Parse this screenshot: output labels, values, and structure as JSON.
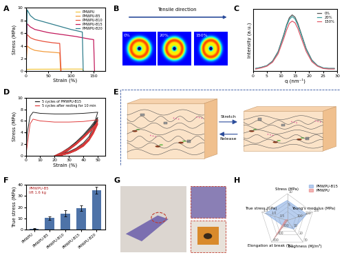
{
  "panel_labels": [
    "A",
    "B",
    "C",
    "D",
    "E",
    "F",
    "G",
    "H"
  ],
  "saxs_panel": {
    "arrow_label": "Tensile direction",
    "frames": [
      "0%",
      "20%",
      "150%"
    ]
  },
  "schematic": {
    "forward_label": "Stretch",
    "backward_label": "Release"
  },
  "chart_data": [
    {
      "type": "line",
      "xlabel": "Strain (%)",
      "ylabel": "Stress (MPa)",
      "xlim": [
        0,
        175
      ],
      "xticks": [
        0,
        50,
        100,
        150
      ],
      "ylim": [
        0,
        10
      ],
      "yticks": [
        0,
        2,
        4,
        6,
        8,
        10
      ],
      "legend": "upper right",
      "series": [
        {
          "name": "PMWPU",
          "color": "#f2c744",
          "x": [
            0,
            2,
            10,
            50,
            100,
            125,
            128
          ],
          "values": [
            0,
            0.3,
            0.32,
            0.33,
            0.35,
            0.35,
            0
          ]
        },
        {
          "name": "PMWPU-B5",
          "color": "#f39c3d",
          "x": [
            0,
            3,
            10,
            20,
            40,
            60,
            75,
            77
          ],
          "values": [
            0,
            4.0,
            3.6,
            3.3,
            3.1,
            3.0,
            2.9,
            0
          ]
        },
        {
          "name": "PMWPU-B10",
          "color": "#e8503a",
          "x": [
            0,
            3,
            10,
            20,
            40,
            60,
            75,
            78
          ],
          "values": [
            0,
            5.8,
            5.3,
            5.0,
            4.7,
            4.5,
            4.4,
            0
          ]
        },
        {
          "name": "PMWPU-B15",
          "color": "#c2185b",
          "x": [
            0,
            3,
            10,
            20,
            50,
            80,
            110,
            140,
            150,
            152
          ],
          "values": [
            0,
            7.5,
            7.0,
            6.6,
            6.1,
            5.8,
            5.5,
            5.1,
            5.0,
            0
          ]
        },
        {
          "name": "PMWPU-B20",
          "color": "#2e7d8c",
          "x": [
            0,
            3,
            10,
            20,
            50,
            80,
            100,
            125,
            127
          ],
          "values": [
            0,
            9.7,
            8.8,
            8.2,
            7.6,
            7.0,
            6.6,
            6.2,
            0
          ]
        }
      ]
    },
    {
      "type": "line",
      "xlabel": "q (nm⁻¹)",
      "ylabel": "Intensity (a.u.)",
      "xlim": [
        0,
        30
      ],
      "xticks": [
        0,
        5,
        10,
        15,
        20,
        25,
        30
      ],
      "ylim": [
        0,
        1.1
      ],
      "yticks": [],
      "tick_labels": "x",
      "legend": "upper right",
      "x": [
        1,
        3,
        5,
        7,
        9,
        11,
        12,
        13,
        14,
        15,
        16,
        17,
        19,
        21,
        23,
        25,
        27,
        29
      ],
      "series": [
        {
          "name": "0%",
          "color": "#555555",
          "values": [
            0.05,
            0.07,
            0.1,
            0.18,
            0.35,
            0.65,
            0.82,
            0.95,
            1.0,
            0.96,
            0.85,
            0.7,
            0.4,
            0.2,
            0.1,
            0.06,
            0.05,
            0.05
          ]
        },
        {
          "name": "20%",
          "color": "#3a9e9e",
          "values": [
            0.05,
            0.07,
            0.1,
            0.17,
            0.34,
            0.63,
            0.8,
            0.92,
            0.97,
            0.93,
            0.82,
            0.68,
            0.39,
            0.19,
            0.1,
            0.06,
            0.05,
            0.05
          ]
        },
        {
          "name": "150%",
          "color": "#e05a6a",
          "values": [
            0.04,
            0.06,
            0.09,
            0.16,
            0.31,
            0.58,
            0.73,
            0.85,
            0.89,
            0.86,
            0.76,
            0.62,
            0.35,
            0.17,
            0.09,
            0.05,
            0.04,
            0.04
          ]
        }
      ]
    },
    {
      "type": "line",
      "xlabel": "Strain (%)",
      "ylabel": "Stress (MPa)",
      "xlim": [
        0,
        55
      ],
      "xticks": [
        0,
        10,
        20,
        30,
        40,
        50
      ],
      "ylim": [
        0,
        10
      ],
      "yticks": [
        0,
        2,
        4,
        6,
        8,
        10
      ],
      "legend": "upper center",
      "series": [
        {
          "name": "5 cycles of PMWPU-B15",
          "color": "#222222",
          "cycles": [
            {
              "x": [
                0,
                1,
                3,
                5,
                10,
                20,
                30,
                40,
                50,
                47,
                44,
                40,
                35,
                30,
                25,
                20
              ],
              "values": [
                0,
                4,
                6.8,
                7.5,
                7.3,
                7.2,
                7.2,
                7.3,
                7.5,
                5,
                3.3,
                2.2,
                1.3,
                0.7,
                0.3,
                0
              ]
            },
            {
              "x": [
                20,
                25,
                30,
                35,
                40,
                45,
                50,
                47,
                44,
                40,
                35,
                30,
                25,
                21
              ],
              "values": [
                0,
                0.6,
                1.4,
                2.4,
                3.6,
                5.0,
                6.6,
                4.5,
                3.0,
                2.0,
                1.2,
                0.6,
                0.2,
                0
              ]
            },
            {
              "x": [
                21,
                25,
                30,
                35,
                40,
                45,
                50,
                47,
                44,
                40,
                35,
                30,
                25,
                22
              ],
              "values": [
                0,
                0.5,
                1.3,
                2.3,
                3.4,
                4.8,
                6.3,
                4.3,
                2.9,
                1.9,
                1.1,
                0.5,
                0.2,
                0
              ]
            },
            {
              "x": [
                22,
                25,
                30,
                35,
                40,
                45,
                50,
                47,
                44,
                40,
                35,
                30,
                25,
                23
              ],
              "values": [
                0,
                0.3,
                1.1,
                2.1,
                3.2,
                4.6,
                6.1,
                4.2,
                2.8,
                1.8,
                1.0,
                0.5,
                0.1,
                0
              ]
            },
            {
              "x": [
                23,
                25,
                30,
                35,
                40,
                45,
                50,
                47,
                44,
                40,
                35,
                30,
                25,
                23
              ],
              "values": [
                0,
                0.2,
                1.0,
                2.0,
                3.1,
                4.5,
                6.0,
                4.1,
                2.7,
                1.7,
                0.9,
                0.4,
                0.1,
                0
              ]
            }
          ]
        },
        {
          "name": "5 cycles after resting for 10 min",
          "color": "#e03a3a",
          "cycles": [
            {
              "x": [
                0,
                3,
                5,
                10,
                20,
                30,
                40,
                50,
                47,
                44,
                40,
                35,
                30,
                25,
                20
              ],
              "values": [
                0,
                5.5,
                6.3,
                6.0,
                5.8,
                5.8,
                5.9,
                6.2,
                4.4,
                3.0,
                2.0,
                1.2,
                0.6,
                0.2,
                0
              ]
            },
            {
              "x": [
                20,
                25,
                30,
                35,
                40,
                45,
                50,
                47,
                44,
                40,
                35,
                30,
                25,
                21
              ],
              "values": [
                0,
                0.6,
                1.3,
                2.2,
                3.3,
                4.5,
                5.8,
                4.2,
                2.9,
                1.9,
                1.1,
                0.5,
                0.2,
                0
              ]
            },
            {
              "x": [
                21,
                25,
                30,
                35,
                40,
                45,
                50,
                47,
                44,
                40,
                35,
                30,
                25,
                22
              ],
              "values": [
                0,
                0.5,
                1.2,
                2.1,
                3.2,
                4.4,
                5.6,
                4.0,
                2.8,
                1.8,
                1.0,
                0.5,
                0.1,
                0
              ]
            },
            {
              "x": [
                22,
                25,
                30,
                35,
                40,
                45,
                50,
                47,
                44,
                40,
                35,
                30,
                25,
                23
              ],
              "values": [
                0,
                0.4,
                1.1,
                2.0,
                3.1,
                4.3,
                5.5,
                3.9,
                2.7,
                1.7,
                0.9,
                0.4,
                0.1,
                0
              ]
            },
            {
              "x": [
                23,
                25,
                30,
                35,
                40,
                45,
                50,
                47,
                44,
                40,
                35,
                30,
                25,
                24
              ],
              "values": [
                0,
                0.2,
                1.0,
                1.9,
                3.0,
                4.2,
                5.4,
                3.8,
                2.6,
                1.6,
                0.9,
                0.4,
                0.1,
                0
              ]
            }
          ]
        }
      ]
    },
    {
      "type": "bar",
      "ylabel": "True stress (MPa)",
      "categories": [
        "PMWPU",
        "PMWPU-B5",
        "PMWPU-B10",
        "PMWPU-B15",
        "PMWPU-B20"
      ],
      "values": [
        1.0,
        10.5,
        14.5,
        19.0,
        35.0
      ],
      "errors": [
        0.3,
        1.5,
        3.0,
        2.5,
        3.0
      ],
      "color": "#4e73a8",
      "ylim": [
        0,
        40
      ],
      "yticks": [
        0,
        10,
        20,
        30,
        40
      ],
      "annotations": [
        "PMWPU-B5",
        "lift 1.6 kg"
      ]
    },
    {
      "type": "radar",
      "legend": "upper right",
      "axes": [
        {
          "label": "Stress (MPa)",
          "lim": [
            0,
            10
          ],
          "ticks": [
            5,
            10
          ]
        },
        {
          "label": "Young's modulus (MPa)",
          "lim": [
            0,
            300
          ],
          "ticks": [
            100,
            200,
            300
          ]
        },
        {
          "label": "Toughness (MJ/m³)",
          "lim": [
            0,
            30
          ],
          "ticks": [
            10,
            20,
            30
          ]
        },
        {
          "label": "Elongation at break (%)",
          "lim": [
            0,
            600
          ],
          "ticks": [
            200,
            400,
            600
          ]
        },
        {
          "label": "True stress (GPa)",
          "lim": [
            0,
            1.5
          ],
          "ticks": [
            0.5,
            {
              "value": 1,
              "label": "1.0"
            },
            1.5
          ]
        }
      ],
      "series": [
        {
          "name": "PMWPU-B15",
          "color": "#7fa6e0",
          "values": [
            7.5,
            230,
            12,
            150,
            1.3
          ]
        },
        {
          "name": "PMWPU",
          "color": "#e87a7a",
          "values": [
            0.3,
            5,
            0.3,
            500,
            0.1
          ]
        }
      ]
    }
  ]
}
